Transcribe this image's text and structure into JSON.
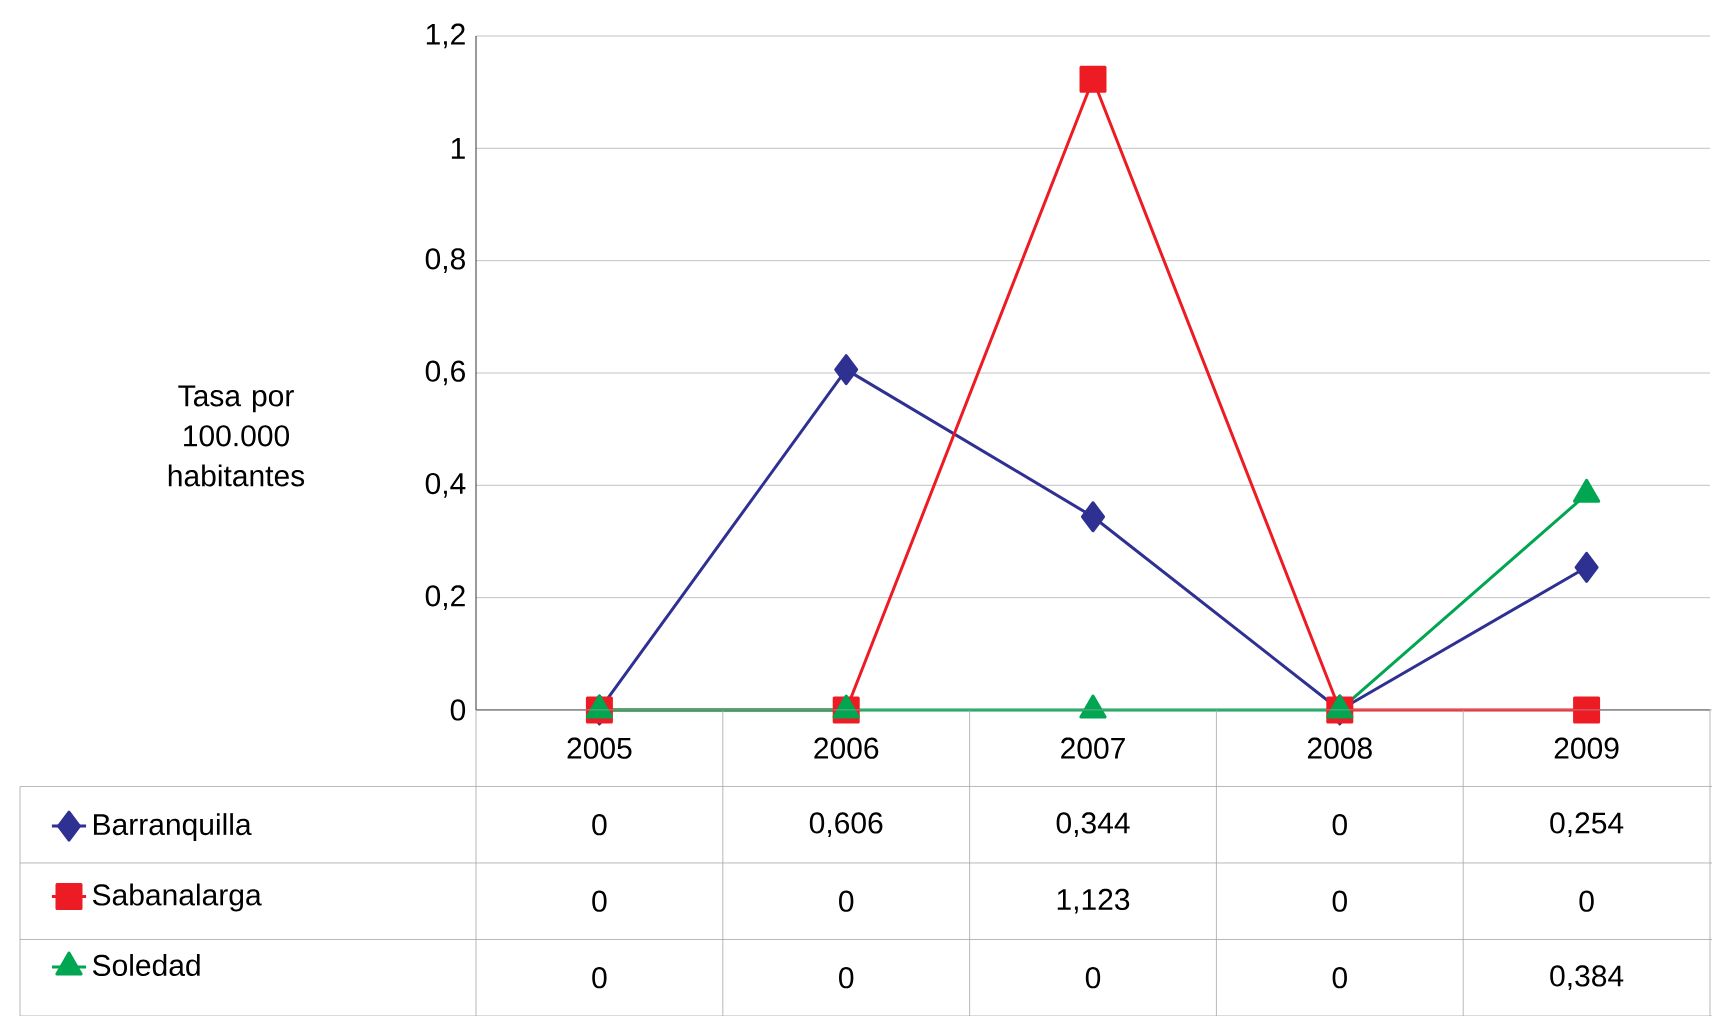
{
  "chart_data": {
    "type": "line",
    "ylabel": "Tasa por 100.000 habitantes",
    "categories": [
      "2005",
      "2006",
      "2007",
      "2008",
      "2009"
    ],
    "series": [
      {
        "name": "Barranquilla",
        "color": "#2e3192",
        "marker": "diamond",
        "values": [
          0,
          0.606,
          0.344,
          0,
          0.254
        ],
        "value_labels": [
          "0",
          "0,606",
          "0,344",
          "0",
          "0,254"
        ]
      },
      {
        "name": "Sabanalarga",
        "color": "#ed1c24",
        "marker": "square",
        "values": [
          0,
          0,
          1.123,
          0,
          0
        ],
        "value_labels": [
          "0",
          "0",
          "1,123",
          "0",
          "0"
        ]
      },
      {
        "name": "Soledad",
        "color": "#00a651",
        "marker": "triangle",
        "values": [
          0,
          0,
          0,
          0,
          0.384
        ],
        "value_labels": [
          "0",
          "0",
          "0",
          "0",
          "0,384"
        ]
      }
    ],
    "ylim": [
      0,
      1.2
    ],
    "yticks": [
      {
        "value": 0,
        "label": "0"
      },
      {
        "value": 0.2,
        "label": "0,2"
      },
      {
        "value": 0.4,
        "label": "0,4"
      },
      {
        "value": 0.6,
        "label": "0,6"
      },
      {
        "value": 0.8,
        "label": "0,8"
      },
      {
        "value": 1,
        "label": "1"
      },
      {
        "value": 1.2,
        "label": "1,2"
      }
    ],
    "grid": "y",
    "legend": "bottom"
  }
}
